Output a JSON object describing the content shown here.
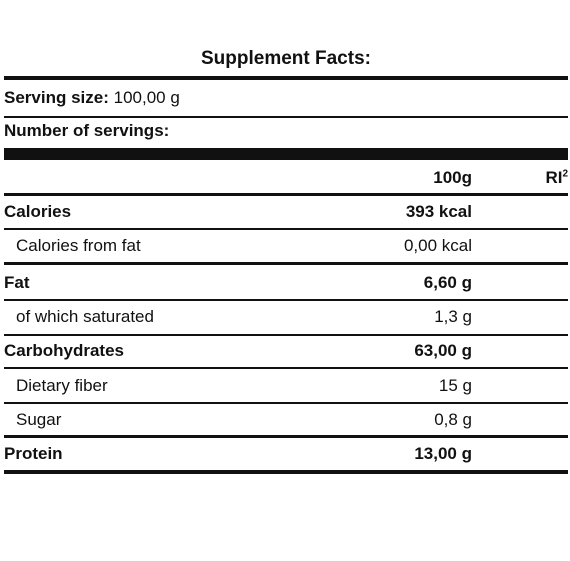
{
  "title": "Supplement Facts:",
  "serving": {
    "label": "Serving size:",
    "value": "100,00 g"
  },
  "servings_count": {
    "label": "Number of servings:",
    "value": ""
  },
  "header": {
    "col_amount": "100g",
    "col_ri": "RI",
    "col_ri_sup": "2"
  },
  "rows": [
    {
      "label": "Calories",
      "value": "393 kcal",
      "bold": true
    },
    {
      "label": "Calories from fat",
      "value": "0,00 kcal",
      "bold": false
    },
    {
      "label": "Fat",
      "value": "6,60 g",
      "bold": true
    },
    {
      "label": "of which saturated",
      "value": "1,3 g",
      "bold": false
    },
    {
      "label": "Carbohydrates",
      "value": "63,00 g",
      "bold": true
    },
    {
      "label": "Dietary fiber",
      "value": "15 g",
      "bold": false
    },
    {
      "label": "Sugar",
      "value": "0,8 g",
      "bold": false
    },
    {
      "label": "Protein",
      "value": "13,00 g",
      "bold": true
    }
  ]
}
